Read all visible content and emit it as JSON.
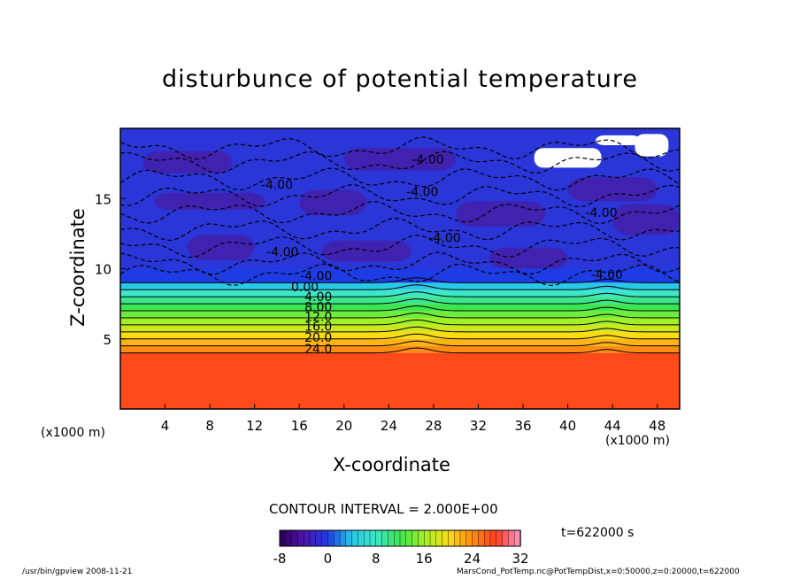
{
  "chart_data": {
    "type": "contour",
    "title": "disturbunce of potential temperature",
    "xlabel": "X-coordinate",
    "ylabel": "Z-coordinate",
    "x_unit_label": "(x1000 m)",
    "xlim": [
      0,
      50
    ],
    "ylim": [
      0,
      20
    ],
    "x_ticks": [
      "4",
      "8",
      "12",
      "16",
      "20",
      "24",
      "28",
      "32",
      "36",
      "40",
      "44",
      "48"
    ],
    "y_ticks": [
      "5",
      "10",
      "15"
    ],
    "contour_interval_text": "CONTOUR INTERVAL = 2.000E+00",
    "time_label": "t=622000 s",
    "colorbar": {
      "min": -8,
      "max": 32,
      "tick_labels": [
        "-8",
        "0",
        "8",
        "16",
        "24",
        "32"
      ]
    },
    "contour_labels": [
      {
        "text": "-4.00",
        "x": 14.0,
        "z": 16.0
      },
      {
        "text": "-4.00",
        "x": 27.5,
        "z": 17.8
      },
      {
        "text": "-4.00",
        "x": 27.0,
        "z": 15.5
      },
      {
        "text": "-4.00",
        "x": 43.0,
        "z": 14.0
      },
      {
        "text": "-4.00",
        "x": 29.0,
        "z": 12.2
      },
      {
        "text": "-4.00",
        "x": 14.5,
        "z": 11.2
      },
      {
        "text": "-4.00",
        "x": 17.5,
        "z": 9.5
      },
      {
        "text": "-4.00",
        "x": 43.5,
        "z": 9.6
      },
      {
        "text": "0.00",
        "x": 16.5,
        "z": 8.7
      },
      {
        "text": "4.00",
        "x": 17.7,
        "z": 8.0
      },
      {
        "text": "8.00",
        "x": 17.7,
        "z": 7.3
      },
      {
        "text": "12.0",
        "x": 17.7,
        "z": 6.6
      },
      {
        "text": "16.0",
        "x": 17.7,
        "z": 5.9
      },
      {
        "text": "20.0",
        "x": 17.7,
        "z": 5.1
      },
      {
        "text": "24.0",
        "x": 17.7,
        "z": 4.3
      }
    ],
    "bands_by_height": [
      {
        "z_bottom": 0,
        "z_top": 4.0,
        "value": 26
      },
      {
        "z_bottom": 4.0,
        "z_top": 4.5,
        "value": 24
      },
      {
        "z_bottom": 4.5,
        "z_top": 5.0,
        "value": 22
      },
      {
        "z_bottom": 5.0,
        "z_top": 5.5,
        "value": 20
      },
      {
        "z_bottom": 5.5,
        "z_top": 6.0,
        "value": 18
      },
      {
        "z_bottom": 6.0,
        "z_top": 6.5,
        "value": 16
      },
      {
        "z_bottom": 6.5,
        "z_top": 7.0,
        "value": 14
      },
      {
        "z_bottom": 7.0,
        "z_top": 7.5,
        "value": 12
      },
      {
        "z_bottom": 7.5,
        "z_top": 8.0,
        "value": 10
      },
      {
        "z_bottom": 8.0,
        "z_top": 8.5,
        "value": 8
      },
      {
        "z_bottom": 8.5,
        "z_top": 9.0,
        "value": 4
      },
      {
        "z_bottom": 9.0,
        "z_top": 10.0,
        "value": 0
      },
      {
        "z_bottom": 10.0,
        "z_top": 20.0,
        "value": -4
      }
    ],
    "colors": {
      "background": "#ffffff",
      "upper_field": "#2a36d8",
      "upper_dark": "#4a1aa0",
      "lower_field": "#ff4a1a"
    }
  },
  "footer": {
    "left": "/usr/bin/gpview  2008-11-21",
    "right": "MarsCond_PotTemp.nc@PotTempDist,x=0:50000,z=0:20000,t=622000"
  }
}
